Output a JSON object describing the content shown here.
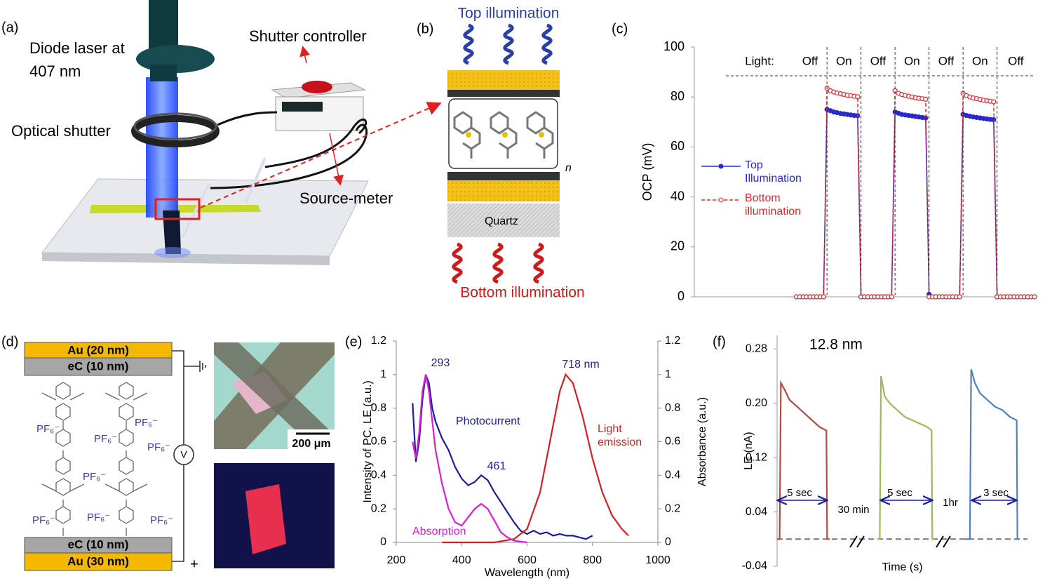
{
  "figure": {
    "panel_labels": [
      "(a)",
      "(b)",
      "(c)",
      "(d)",
      "(e)",
      "(f)"
    ],
    "a": {
      "laser": "Diode laser at 407 nm",
      "shutter": "Optical shutter",
      "controller": "Shutter controller",
      "meter": "Source-meter"
    },
    "b": {
      "top": "Top illumination",
      "substrate": "Quartz",
      "repeat": "n",
      "bottom": "Bottom illumination"
    },
    "d": {
      "top_metal": "Au (20 nm)",
      "top_carbon": "eC (10 nm)",
      "bottom_carbon": "eC (10 nm)",
      "bottom_metal": "Au (30 nm)",
      "counterions": [
        "PF₆⁻",
        "PF₆⁻",
        "PF₆⁻",
        "PF₆⁻",
        "PF₆⁻",
        "PF₆⁻",
        "PF₆⁻",
        "PF₆⁻"
      ],
      "meter": "V",
      "polarity": "+",
      "scale_bar": "200 μm"
    }
  },
  "chart_data": [
    {
      "type": "line",
      "ylabel": "OCP (mV)",
      "ylim": [
        0,
        100
      ],
      "yticks": [
        0,
        20,
        40,
        60,
        80,
        100
      ],
      "xlim": [
        0,
        100
      ],
      "markers": true,
      "light_label": "Light:",
      "light_states": [
        "Off",
        "On",
        "Off",
        "On",
        "Off",
        "On",
        "Off"
      ],
      "light_changes": [
        39,
        49,
        59,
        69,
        79,
        89
      ],
      "x": [
        30,
        31,
        32,
        33,
        34,
        35,
        36,
        37,
        38,
        39,
        40,
        41,
        42,
        43,
        44,
        45,
        46,
        47,
        48,
        49,
        50,
        51,
        52,
        53,
        54,
        55,
        56,
        57,
        58,
        59,
        60,
        61,
        62,
        63,
        64,
        65,
        66,
        67,
        68,
        69,
        70,
        71,
        72,
        73,
        74,
        75,
        76,
        77,
        78,
        79,
        80,
        81,
        82,
        83,
        84,
        85,
        86,
        87,
        88,
        89,
        90,
        91,
        92,
        93,
        94,
        95,
        96,
        97,
        98,
        99,
        100
      ],
      "series": [
        {
          "name": "Top Illumination",
          "color": "#2828cc",
          "values": [
            0,
            0,
            0,
            0,
            0,
            0,
            0,
            0,
            0,
            75,
            74.5,
            74,
            73.7,
            73.4,
            73.2,
            73,
            72.8,
            72.6,
            72.5,
            0,
            0,
            0,
            0,
            0,
            0,
            0,
            0,
            0,
            0,
            74,
            73.5,
            73,
            72.8,
            72.6,
            72.4,
            72.2,
            72,
            71.8,
            71.6,
            1,
            0,
            0,
            0,
            0,
            0,
            0,
            0,
            0,
            0,
            73,
            72.6,
            72.3,
            72,
            71.8,
            71.6,
            71.4,
            71.2,
            71,
            70.9,
            0,
            0,
            0,
            0,
            0,
            0,
            0,
            0,
            0,
            0,
            0,
            0
          ]
        },
        {
          "name": "Bottom illumination",
          "color": "#e8262a",
          "dashed": true,
          "values": [
            0,
            0,
            0,
            0,
            0,
            0,
            0,
            0,
            0,
            83.5,
            82.5,
            82,
            81.6,
            81.3,
            81,
            80.7,
            80.5,
            80.3,
            80.1,
            0,
            0,
            0,
            0,
            0,
            0,
            0,
            0,
            0,
            0,
            82.5,
            81.5,
            81,
            80.6,
            80.3,
            80,
            79.7,
            79.5,
            79.3,
            79.1,
            0,
            0,
            0,
            0,
            0,
            0,
            0,
            0,
            0,
            0,
            81.5,
            80.5,
            80,
            79.6,
            79.3,
            79,
            78.7,
            78.5,
            78.3,
            78.1,
            0,
            0,
            0,
            0,
            0,
            0,
            0,
            0,
            0,
            0,
            0,
            0
          ]
        }
      ]
    },
    {
      "type": "line",
      "xlabel": "Wavelength (nm)",
      "ylabel": "Intensity of PC, LE (a.u.)",
      "y2label": "Absorbance (a.u.)",
      "xlim": [
        200,
        1000
      ],
      "xticks": [
        200,
        400,
        600,
        800,
        1000
      ],
      "ylim": [
        0,
        1.2
      ],
      "yticks": [
        0,
        0.2,
        0.4,
        0.6,
        0.8,
        1,
        1.2
      ],
      "y2lim": [
        0,
        1.2
      ],
      "y2ticks": [
        0,
        0.2,
        0.4,
        0.6,
        0.8,
        1,
        1.2
      ],
      "peak_labels": [
        "293",
        "461",
        "718 nm"
      ],
      "series": [
        {
          "name": "Photocurrent",
          "color": "#1c1ca0",
          "x": [
            250,
            260,
            270,
            280,
            290,
            300,
            310,
            320,
            340,
            360,
            380,
            400,
            420,
            440,
            460,
            480,
            500,
            520,
            540,
            560,
            580,
            600,
            620,
            640,
            660,
            680,
            700,
            720,
            740,
            760,
            780,
            800
          ],
          "values": [
            0.83,
            0.48,
            0.6,
            0.85,
            1,
            0.95,
            0.8,
            0.72,
            0.62,
            0.55,
            0.45,
            0.38,
            0.34,
            0.36,
            0.4,
            0.37,
            0.3,
            0.24,
            0.18,
            0.12,
            0.07,
            0.05,
            0.07,
            0.05,
            0.06,
            0.04,
            0.05,
            0.04,
            0.04,
            0.03,
            0.02,
            0.04
          ]
        },
        {
          "name": "Light emission",
          "color": "#d42020",
          "x": [
            340,
            500,
            560,
            600,
            640,
            670,
            700,
            718,
            740,
            770,
            800,
            830,
            860,
            890,
            910
          ],
          "values": [
            0,
            0,
            0.02,
            0.08,
            0.3,
            0.6,
            0.9,
            1,
            0.95,
            0.75,
            0.5,
            0.3,
            0.16,
            0.08,
            0.04
          ]
        },
        {
          "name": "Absorption",
          "color": "#d81ed8",
          "axis": "y2",
          "x": [
            250,
            260,
            270,
            280,
            290,
            300,
            320,
            340,
            360,
            380,
            400,
            420,
            440,
            460,
            480,
            500,
            520,
            540,
            560,
            600
          ],
          "values": [
            0.6,
            0.5,
            0.65,
            0.9,
            1,
            0.9,
            0.55,
            0.35,
            0.2,
            0.12,
            0.1,
            0.15,
            0.2,
            0.23,
            0.2,
            0.13,
            0.06,
            0.03,
            0.01,
            0
          ]
        }
      ]
    },
    {
      "type": "line",
      "title": "12.8 nm",
      "xlabel": "Time (s)",
      "ylabel": "LE (nA)",
      "ylim": [
        -0.04,
        0.3
      ],
      "yticks": [
        -0.04,
        0.04,
        0.12,
        {
          "value": 0.2,
          "label": "0.20"
        },
        0.28
      ],
      "xlim": [
        0,
        100
      ],
      "reference_line": 0,
      "annotations": [
        "5 sec",
        "30 min",
        "5 sec",
        "1hr",
        "3 sec"
      ],
      "series": [
        {
          "color": "#b04a45",
          "x": [
            0,
            1,
            1.5,
            3,
            5,
            8,
            11,
            14,
            17,
            19.7,
            20,
            21
          ],
          "values": [
            0,
            0,
            0.23,
            0.22,
            0.205,
            0.195,
            0.185,
            0.175,
            0.165,
            0.16,
            0,
            0
          ]
        },
        {
          "color": "#9bbb59",
          "x": [
            40,
            41,
            41.5,
            43,
            45,
            48,
            51,
            54,
            57,
            60,
            61.7,
            62,
            63
          ],
          "values": [
            0,
            0,
            0.24,
            0.21,
            0.2,
            0.19,
            0.18,
            0.175,
            0.17,
            0.165,
            0.16,
            0,
            0
          ]
        },
        {
          "color": "#4f81bd",
          "x": [
            75,
            77,
            77.5,
            79,
            81,
            84,
            87,
            90,
            93,
            95.7,
            96,
            97
          ],
          "values": [
            0,
            0,
            0.25,
            0.23,
            0.215,
            0.205,
            0.195,
            0.19,
            0.18,
            0.175,
            0,
            0
          ]
        }
      ]
    }
  ]
}
